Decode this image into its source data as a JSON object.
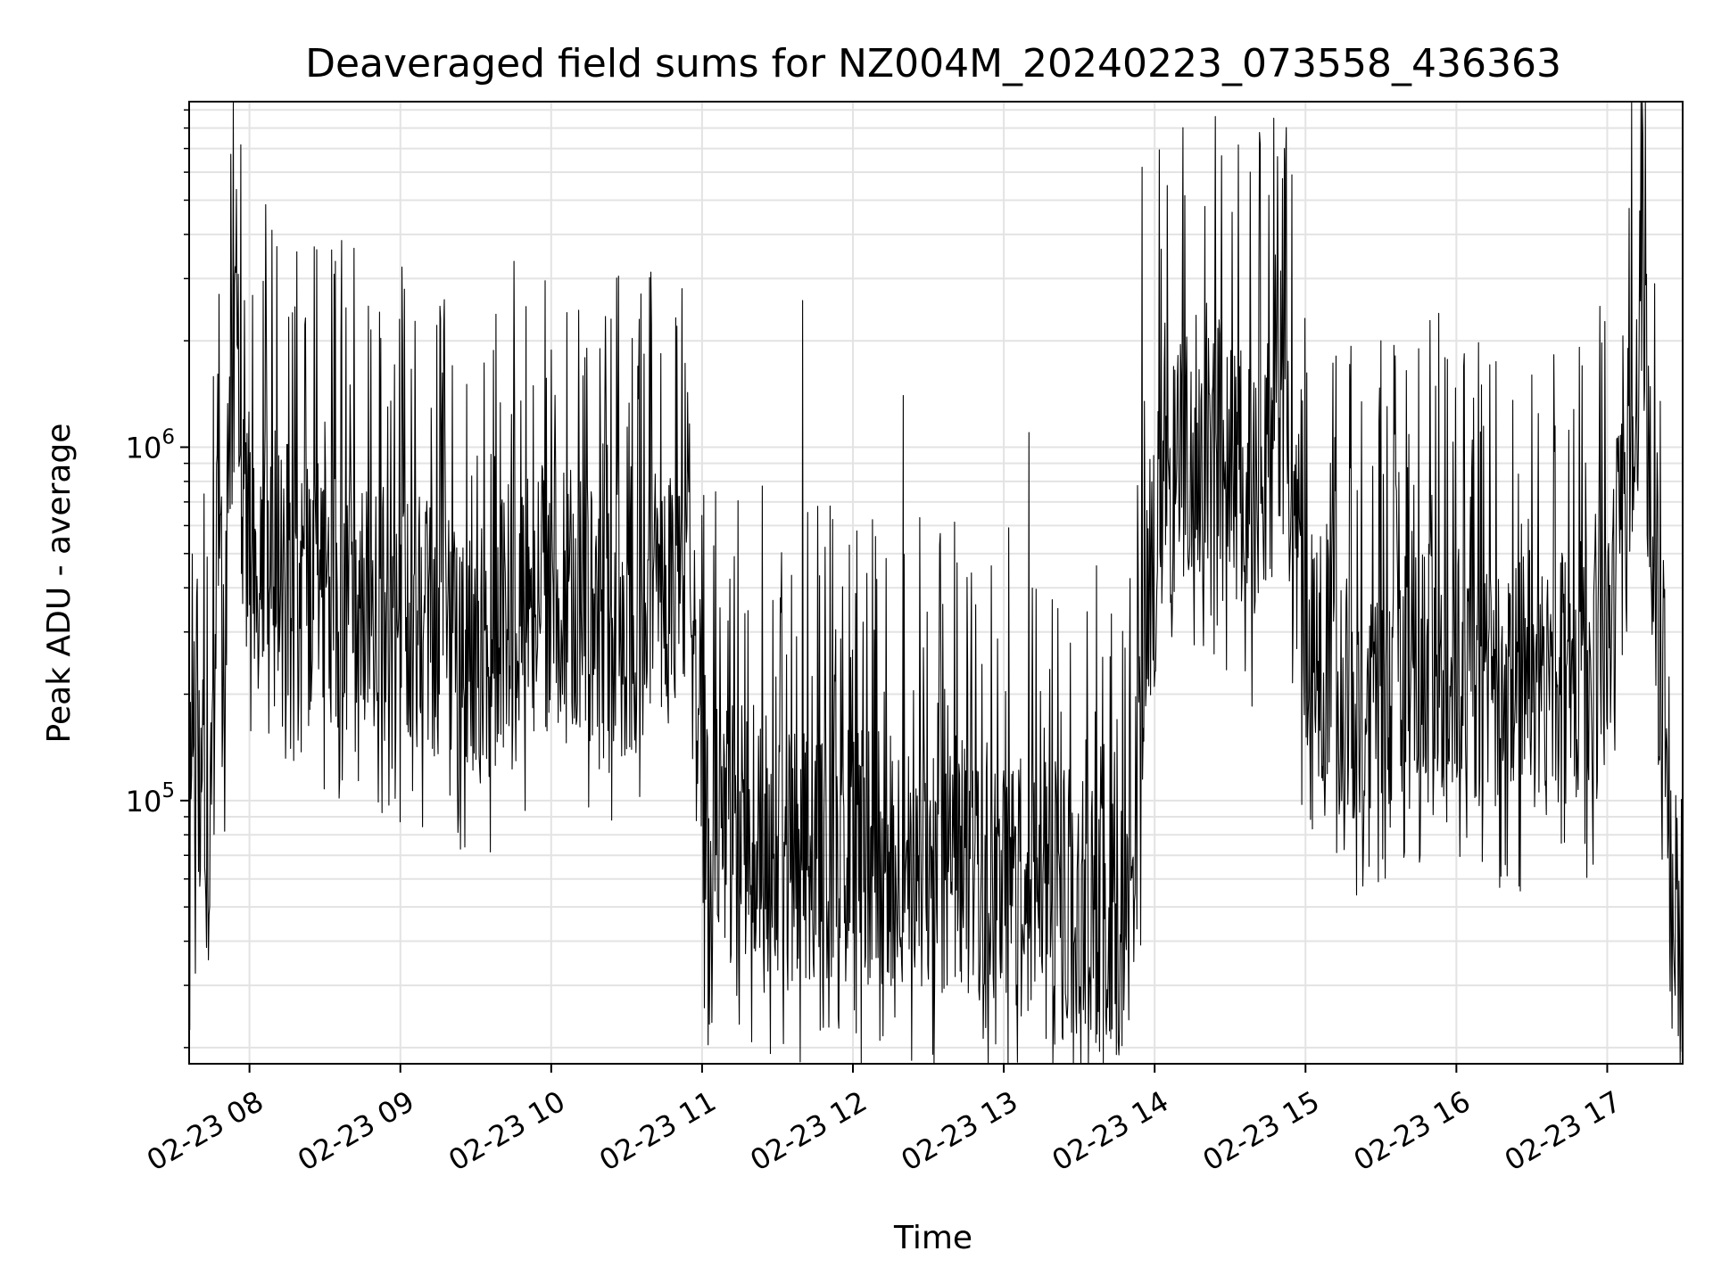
{
  "chart_data": {
    "type": "line",
    "title": "Deaveraged field sums for NZ004M_20240223_073558_436363",
    "xlabel": "Time",
    "ylabel": "Peak ADU - average",
    "yscale": "log",
    "xlim": [
      "02-23 07:36",
      "02-23 17:30"
    ],
    "ylim": [
      18000,
      9500000
    ],
    "grid": true,
    "line_color": "#000000",
    "x_ticks": [
      "02-23 08",
      "02-23 09",
      "02-23 10",
      "02-23 11",
      "02-23 12",
      "02-23 13",
      "02-23 14",
      "02-23 15",
      "02-23 16",
      "02-23 17"
    ],
    "y_ticks": [
      {
        "base": "10",
        "exp": "5",
        "value": 100000
      },
      {
        "base": "10",
        "exp": "6",
        "value": 1000000
      }
    ],
    "series": [
      {
        "x": [
          "07:36",
          "07:38",
          "07:41",
          "07:44",
          "07:47",
          "07:50",
          "07:52",
          "07:55",
          "07:57",
          "08:00",
          "08:10",
          "08:30",
          "08:55",
          "09:15",
          "09:30",
          "09:45",
          "10:00",
          "10:15",
          "10:30",
          "10:45",
          "10:55",
          "11:00",
          "11:10",
          "11:20",
          "11:40",
          "12:00",
          "12:20",
          "12:40",
          "13:00",
          "13:20",
          "13:40",
          "13:50",
          "14:00",
          "14:10",
          "14:20",
          "14:40",
          "14:50",
          "15:00",
          "15:10",
          "15:20",
          "15:40",
          "16:00",
          "16:20",
          "16:40",
          "16:55",
          "17:05",
          "17:15",
          "17:20",
          "17:25",
          "17:30"
        ],
        "values": [
          35000,
          100000,
          120000,
          60000,
          500000,
          300000,
          1200000,
          2600000,
          800000,
          600000,
          500000,
          400000,
          350000,
          300000,
          250000,
          350000,
          400000,
          350000,
          300000,
          400000,
          500000,
          80000,
          80000,
          80000,
          70000,
          70000,
          70000,
          65000,
          60000,
          55000,
          45000,
          45000,
          700000,
          900000,
          1100000,
          700000,
          1500000,
          300000,
          250000,
          200000,
          250000,
          250000,
          200000,
          250000,
          220000,
          500000,
          2900000,
          200000,
          90000,
          20000
        ],
        "spikes": {
          "x": [
            "07:58",
            "08:40",
            "08:55",
            "09:50",
            "10:35",
            "10:50",
            "11:40",
            "12:20",
            "13:10",
            "13:55",
            "14:05",
            "14:20",
            "14:38",
            "14:42",
            "14:48",
            "15:30",
            "15:45",
            "16:10",
            "16:30",
            "16:50"
          ],
          "values": [
            2600000,
            1500000,
            1300000,
            2500000,
            2300000,
            2200000,
            2600000,
            1400000,
            1100000,
            6200000,
            5500000,
            4800000,
            6000000,
            7200000,
            3500000,
            2000000,
            1900000,
            1500000,
            1600000,
            1700000
          ]
        }
      }
    ]
  }
}
